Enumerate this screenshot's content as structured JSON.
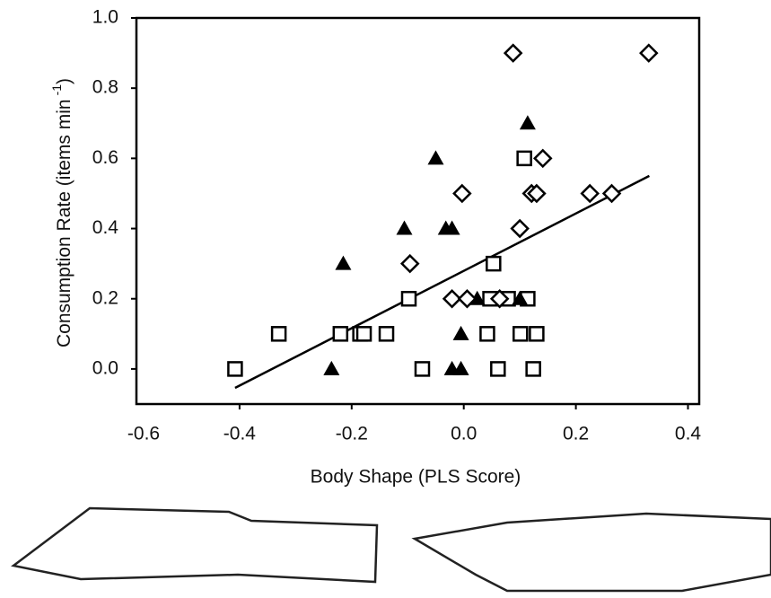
{
  "chart_data": {
    "type": "scatter",
    "xlabel": "Body Shape (PLS Score)",
    "ylabel": "Consumption Rate (items min",
    "ylabel_superscript": "-1",
    "ylabel_close": ")",
    "xlim": [
      -0.6,
      0.42
    ],
    "ylim": [
      -0.1,
      1.0
    ],
    "xticks": [
      -0.6,
      -0.4,
      -0.2,
      {
        "value": 0,
        "label": "0.0"
      },
      0.2,
      0.4
    ],
    "yticks": [
      {
        "value": 0,
        "label": "0.0"
      },
      0.2,
      0.4,
      0.6,
      0.8,
      {
        "value": 1,
        "label": "1.0"
      }
    ],
    "grid": false,
    "series": [
      {
        "marker": "square",
        "color": "#000000",
        "x": [
          -0.408,
          -0.33,
          -0.22,
          -0.185,
          -0.178,
          -0.138,
          -0.098,
          -0.074,
          0.053,
          0.042,
          0.061,
          0.108,
          0.101,
          0.13,
          0.124,
          0.047,
          0.079,
          0.114
        ],
        "y": [
          0,
          0.1,
          0.1,
          0.1,
          0.1,
          0.1,
          0.2,
          0,
          0.3,
          0.1,
          0,
          0.6,
          0.1,
          0.1,
          0,
          0.2,
          0.2,
          0.2
        ]
      },
      {
        "marker": "triangle",
        "color": "#000000",
        "x": [
          -0.236,
          -0.215,
          -0.106,
          -0.05,
          -0.032,
          -0.021,
          -0.021,
          -0.005,
          -0.005,
          0.024,
          0.1,
          0.114
        ],
        "y": [
          0,
          0.3,
          0.4,
          0.6,
          0.4,
          0.4,
          0,
          0,
          0.1,
          0.2,
          0.2,
          0.7
        ]
      },
      {
        "marker": "diamond",
        "color": "#000000",
        "x": [
          0.088,
          0.33,
          0.141,
          -0.003,
          0.121,
          0.13,
          0.225,
          0.264,
          0.1,
          -0.096,
          -0.021,
          0.006,
          0.064
        ],
        "y": [
          0.9,
          0.9,
          0.6,
          0.5,
          0.5,
          0.5,
          0.5,
          0.5,
          0.4,
          0.3,
          0.2,
          0.2,
          0.2
        ]
      }
    ],
    "fit": {
      "x": [
        -0.408,
        0.331
      ],
      "y": [
        -0.054,
        0.55
      ]
    }
  }
}
